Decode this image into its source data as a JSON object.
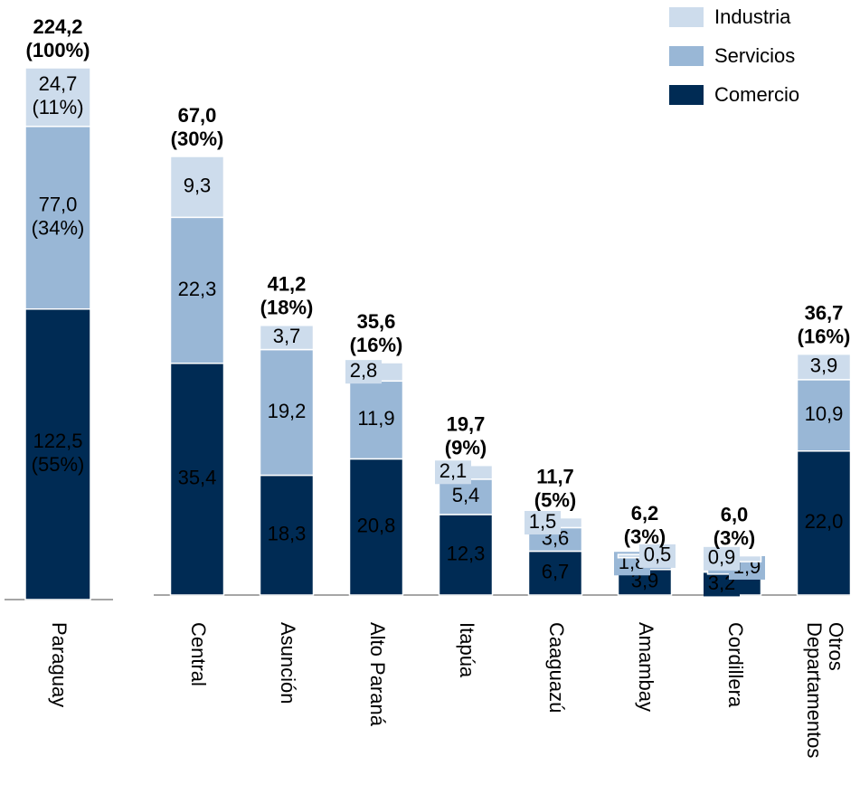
{
  "chart_data": {
    "type": "stacked_bar",
    "categories": [
      "Paraguay",
      "Central",
      "Asunción",
      "Alto Paraná",
      "Itapúa",
      "Caaguazú",
      "Amambay",
      "Cordillera",
      "Otros Departamentos"
    ],
    "series": [
      {
        "name": "Comercio",
        "color": "#002b54",
        "values": [
          122.5,
          35.4,
          18.3,
          20.8,
          12.3,
          6.7,
          3.9,
          3.2,
          22.0
        ],
        "value_labels": [
          "122,5",
          "35,4",
          "18,3",
          "20,8",
          "12,3",
          "6,7",
          "3,9",
          "3,2",
          "22,0"
        ],
        "share": 55,
        "share_label": "(55%)"
      },
      {
        "name": "Servicios",
        "color": "#99b7d6",
        "values": [
          77.0,
          22.3,
          19.2,
          11.9,
          5.4,
          3.6,
          1.8,
          1.9,
          10.9
        ],
        "value_labels": [
          "77,0",
          "22,3",
          "19,2",
          "11,9",
          "5,4",
          "3,6",
          "1,8",
          "1,9",
          "10,9"
        ],
        "share": 34,
        "share_label": "(34%)"
      },
      {
        "name": "Industria",
        "color": "#cddcec",
        "values": [
          24.7,
          9.3,
          3.7,
          2.8,
          2.1,
          1.5,
          0.5,
          0.9,
          3.9
        ],
        "value_labels": [
          "24,7",
          "9,3",
          "3,7",
          "2,8",
          "2,1",
          "1,5",
          "0,5",
          "0,9",
          "3,9"
        ],
        "share": 11,
        "share_label": "(11%)"
      }
    ],
    "totals": [
      224.2,
      67.0,
      41.2,
      35.6,
      19.7,
      11.7,
      6.2,
      6.0,
      36.7
    ],
    "total_labels": [
      "224,2",
      "67,0",
      "41,2",
      "35,6",
      "19,7",
      "11,7",
      "6,2",
      "6,0",
      "36,7"
    ],
    "total_shares": [
      100,
      30,
      18,
      16,
      9,
      5,
      3,
      3,
      16
    ],
    "total_share_labels": [
      "(100%)",
      "(30%)",
      "(18%)",
      "(16%)",
      "(9%)",
      "(5%)",
      "(3%)",
      "(3%)",
      "(16%)"
    ],
    "legend": "top-right"
  }
}
